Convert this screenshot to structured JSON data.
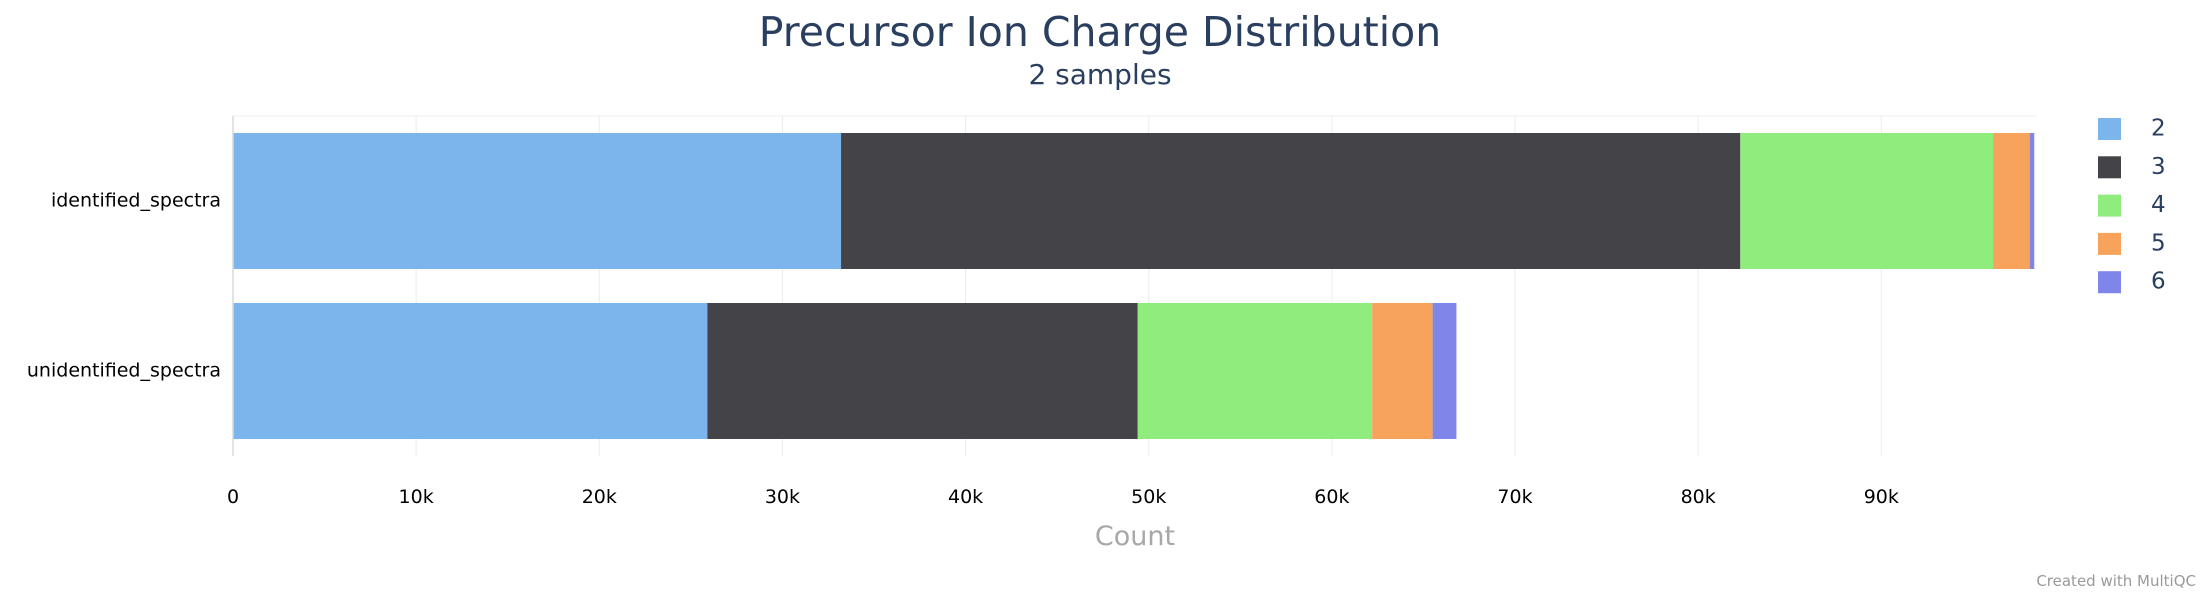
{
  "chart_data": {
    "type": "bar",
    "orientation": "horizontal",
    "stacked": true,
    "title": "Precursor Ion Charge Distribution",
    "subtitle": "2 samples",
    "xlabel": "Count",
    "ylabel": "",
    "xlim": [
      0,
      98500
    ],
    "x_ticks": [
      0,
      10000,
      20000,
      30000,
      40000,
      50000,
      60000,
      70000,
      80000,
      90000
    ],
    "x_tick_labels": [
      "0",
      "10k",
      "20k",
      "30k",
      "40k",
      "50k",
      "60k",
      "70k",
      "80k",
      "90k"
    ],
    "grid": true,
    "legend_position": "right",
    "categories": [
      "identified_spectra",
      "unidentified_spectra"
    ],
    "series": [
      {
        "name": "2",
        "color": "#7cb5ec",
        "values": [
          33200,
          25900
        ]
      },
      {
        "name": "3",
        "color": "#434348",
        "values": [
          49100,
          23500
        ]
      },
      {
        "name": "4",
        "color": "#90ed7d",
        "values": [
          13800,
          12800
        ]
      },
      {
        "name": "5",
        "color": "#f7a35c",
        "values": [
          2000,
          3300
        ]
      },
      {
        "name": "6",
        "color": "#8085e9",
        "values": [
          250,
          1300
        ]
      }
    ]
  },
  "footer": {
    "credit": "Created with MultiQC"
  }
}
